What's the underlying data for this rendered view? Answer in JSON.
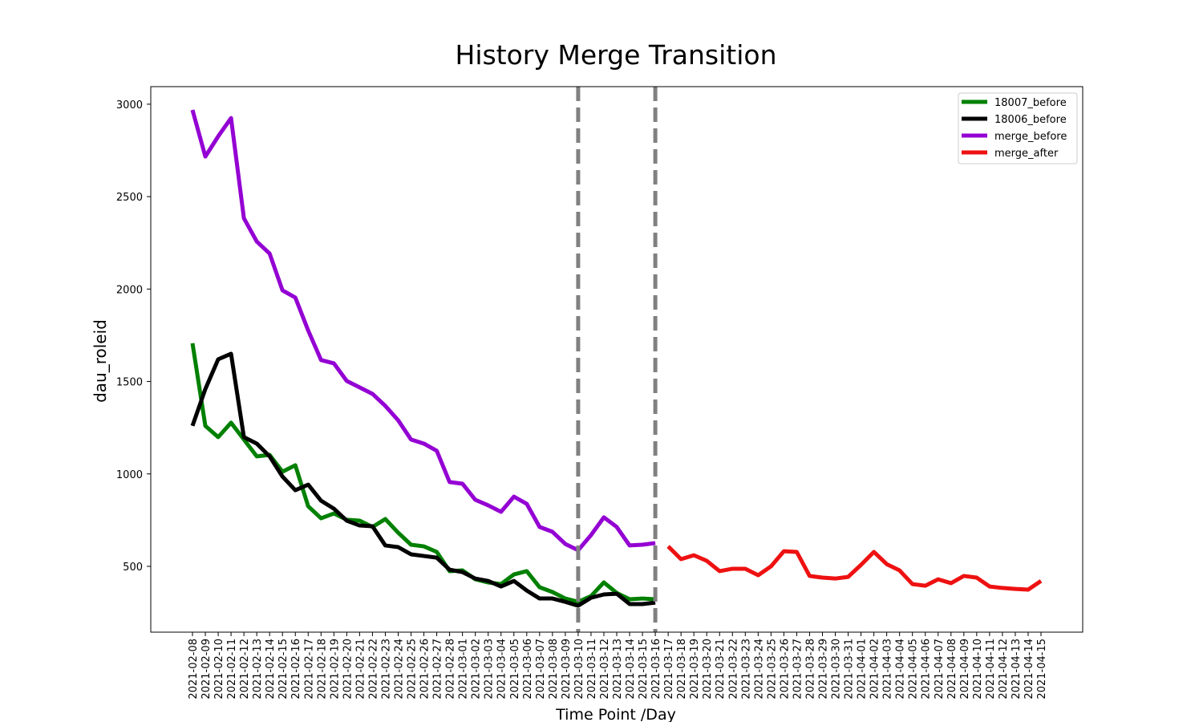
{
  "chart_data": {
    "type": "line",
    "title": "History Merge Transition",
    "x_label": "Time Point /Day",
    "y_label": "dau_roleid",
    "categories": [
      "2021-02-08",
      "2021-02-09",
      "2021-02-10",
      "2021-02-11",
      "2021-02-12",
      "2021-02-13",
      "2021-02-14",
      "2021-02-15",
      "2021-02-16",
      "2021-02-17",
      "2021-02-18",
      "2021-02-19",
      "2021-02-20",
      "2021-02-21",
      "2021-02-22",
      "2021-02-23",
      "2021-02-24",
      "2021-02-25",
      "2021-02-26",
      "2021-02-27",
      "2021-02-28",
      "2021-03-01",
      "2021-03-02",
      "2021-03-03",
      "2021-03-04",
      "2021-03-05",
      "2021-03-06",
      "2021-03-07",
      "2021-03-08",
      "2021-03-09",
      "2021-03-10",
      "2021-03-11",
      "2021-03-12",
      "2021-03-13",
      "2021-03-14",
      "2021-03-15",
      "2021-03-16",
      "2021-03-17",
      "2021-03-18",
      "2021-03-19",
      "2021-03-20",
      "2021-03-21",
      "2021-03-22",
      "2021-03-23",
      "2021-03-24",
      "2021-03-25",
      "2021-03-26",
      "2021-03-27",
      "2021-03-28",
      "2021-03-29",
      "2021-03-30",
      "2021-03-31",
      "2021-04-01",
      "2021-04-02",
      "2021-04-03",
      "2021-04-04",
      "2021-04-05",
      "2021-04-06",
      "2021-04-07",
      "2021-04-08",
      "2021-04-09",
      "2021-04-10",
      "2021-04-11",
      "2021-04-12",
      "2021-04-13",
      "2021-04-14",
      "2021-04-15"
    ],
    "series": [
      {
        "name": "18007_before",
        "color": "#008000",
        "values": [
          1707,
          1260,
          1199,
          1277,
          1186,
          1095,
          1103,
          1012,
          1047,
          825,
          760,
          786,
          752,
          747,
          713,
          756,
          682,
          617,
          608,
          578,
          474,
          478,
          430,
          413,
          404,
          456,
          474,
          387,
          361,
          326,
          308,
          339,
          413,
          356,
          322,
          326,
          322,
          null,
          null,
          null,
          null,
          null,
          null,
          null,
          null,
          null,
          null,
          null,
          null,
          null,
          null,
          null,
          null,
          null,
          null,
          null,
          null,
          null,
          null,
          null,
          null,
          null,
          null,
          null,
          null,
          null,
          null
        ]
      },
      {
        "name": "18006_before",
        "color": "#000000",
        "values": [
          1260,
          1459,
          1620,
          1650,
          1199,
          1164,
          1095,
          986,
          912,
          942,
          855,
          812,
          747,
          721,
          717,
          613,
          604,
          565,
          556,
          547,
          482,
          469,
          434,
          421,
          391,
          421,
          369,
          326,
          326,
          308,
          287,
          330,
          348,
          352,
          296,
          296,
          304,
          null,
          null,
          null,
          null,
          null,
          null,
          null,
          null,
          null,
          null,
          null,
          null,
          null,
          null,
          null,
          null,
          null,
          null,
          null,
          null,
          null,
          null,
          null,
          null,
          null,
          null,
          null,
          null,
          null,
          null
        ]
      },
      {
        "name": "merge_before",
        "color": "#9400d3",
        "values": [
          2969,
          2717,
          2826,
          2925,
          2383,
          2257,
          2192,
          1993,
          1954,
          1776,
          1616,
          1598,
          1503,
          1468,
          1433,
          1368,
          1290,
          1186,
          1164,
          1125,
          956,
          947,
          860,
          830,
          795,
          877,
          838,
          713,
          687,
          621,
          587,
          669,
          765,
          713,
          613,
          617,
          626,
          null,
          null,
          null,
          null,
          null,
          null,
          null,
          null,
          null,
          null,
          null,
          null,
          null,
          null,
          null,
          null,
          null,
          null,
          null,
          null,
          null,
          null,
          null,
          null,
          null,
          null,
          null,
          null,
          null,
          null
        ]
      },
      {
        "name": "merge_after",
        "color": "#ee1111",
        "values": [
          null,
          null,
          null,
          null,
          null,
          null,
          null,
          null,
          null,
          null,
          null,
          null,
          null,
          null,
          null,
          null,
          null,
          null,
          null,
          null,
          null,
          null,
          null,
          null,
          null,
          null,
          null,
          null,
          null,
          null,
          null,
          null,
          null,
          null,
          null,
          null,
          null,
          608,
          539,
          560,
          530,
          474,
          487,
          487,
          452,
          500,
          582,
          578,
          448,
          439,
          434,
          443,
          508,
          578,
          512,
          478,
          404,
          395,
          430,
          409,
          448,
          439,
          391,
          383,
          378,
          374,
          421
        ]
      }
    ],
    "vlines": [
      "2021-03-10",
      "2021-03-16"
    ],
    "vline_color": "#808080",
    "ylim": [
      144,
      3095
    ],
    "yticks": [
      500,
      1000,
      1500,
      2000,
      2500,
      3000
    ],
    "grid": false,
    "legend": "upper right"
  }
}
